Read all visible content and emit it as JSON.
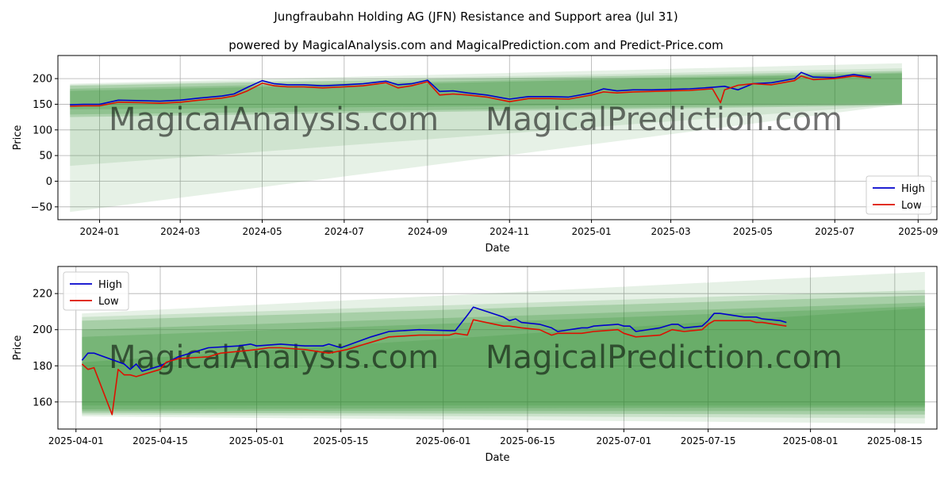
{
  "colors": {
    "high": "#0000cc",
    "low": "#dd1100",
    "band": "#2e8b2e",
    "grid": "#b0b0b0",
    "watermark": "#d0d0d0"
  },
  "header": {
    "title": "Jungfraubahn Holding AG (JFN) Resistance and Support area (Jul 31)",
    "subtitle": "powered by MagicalAnalysis.com and MagicalPrediction.com and Predict-Price.com"
  },
  "watermarks": [
    "MagicalAnalysis.com",
    "MagicalPrediction.com"
  ],
  "chart_data": [
    {
      "type": "line",
      "name": "overview",
      "xlabel": "Date",
      "ylabel": "Price",
      "grid": true,
      "legend": "lower-right",
      "xlim": [
        "2023-12-01",
        "2025-09-15"
      ],
      "ylim": [
        -75,
        245
      ],
      "xticks": [
        {
          "date": "2024-01-01",
          "label": "2024-01"
        },
        {
          "date": "2024-03-01",
          "label": "2024-03"
        },
        {
          "date": "2024-05-01",
          "label": "2024-05"
        },
        {
          "date": "2024-07-01",
          "label": "2024-07"
        },
        {
          "date": "2024-09-01",
          "label": "2024-09"
        },
        {
          "date": "2024-11-01",
          "label": "2024-11"
        },
        {
          "date": "2025-01-01",
          "label": "2025-01"
        },
        {
          "date": "2025-03-01",
          "label": "2025-03"
        },
        {
          "date": "2025-05-01",
          "label": "2025-05"
        },
        {
          "date": "2025-07-01",
          "label": "2025-07"
        },
        {
          "date": "2025-09-01",
          "label": "2025-09"
        }
      ],
      "yticks": [
        {
          "value": 200,
          "label": "200"
        },
        {
          "value": 150,
          "label": "150"
        },
        {
          "value": 100,
          "label": "100"
        },
        {
          "value": 50,
          "label": "50"
        },
        {
          "value": 0,
          "label": "0"
        },
        {
          "value": -50,
          "label": "−50"
        }
      ],
      "bands": [
        {
          "start": "2023-12-10",
          "end": "2025-08-20",
          "top": [
            190,
            230
          ],
          "bottom": [
            -60,
            150
          ],
          "opacity": 0.12
        },
        {
          "start": "2023-12-10",
          "end": "2025-08-20",
          "top": [
            188,
            220
          ],
          "bottom": [
            30,
            150
          ],
          "opacity": 0.12
        },
        {
          "start": "2023-12-10",
          "end": "2025-08-20",
          "top": [
            186,
            215
          ],
          "bottom": [
            125,
            148
          ],
          "opacity": 0.22
        },
        {
          "start": "2023-12-10",
          "end": "2025-08-20",
          "top": [
            180,
            212
          ],
          "bottom": [
            130,
            150
          ],
          "opacity": 0.22
        },
        {
          "start": "2023-12-10",
          "end": "2025-08-20",
          "top": [
            176,
            210
          ],
          "bottom": [
            140,
            152
          ],
          "opacity": 0.22
        }
      ],
      "series": [
        {
          "name": "High",
          "x": [
            "2023-12-10",
            "2023-12-20",
            "2024-01-01",
            "2024-01-15",
            "2024-02-01",
            "2024-02-15",
            "2024-03-01",
            "2024-03-15",
            "2024-04-01",
            "2024-04-10",
            "2024-04-20",
            "2024-05-01",
            "2024-05-10",
            "2024-05-20",
            "2024-06-01",
            "2024-06-15",
            "2024-07-01",
            "2024-07-15",
            "2024-08-01",
            "2024-08-10",
            "2024-08-20",
            "2024-09-01",
            "2024-09-10",
            "2024-09-20",
            "2024-10-01",
            "2024-10-15",
            "2024-11-01",
            "2024-11-15",
            "2024-12-01",
            "2024-12-15",
            "2025-01-01",
            "2025-01-10",
            "2025-01-20",
            "2025-02-01",
            "2025-02-15",
            "2025-03-01",
            "2025-03-15",
            "2025-04-01",
            "2025-04-10",
            "2025-04-20",
            "2025-05-01",
            "2025-05-15",
            "2025-06-01",
            "2025-06-06",
            "2025-06-15",
            "2025-07-01",
            "2025-07-15",
            "2025-07-28"
          ],
          "values": [
            149,
            150,
            150,
            158,
            157,
            156,
            158,
            162,
            166,
            170,
            183,
            196,
            190,
            188,
            188,
            186,
            188,
            190,
            195,
            188,
            190,
            197,
            175,
            176,
            172,
            168,
            160,
            165,
            165,
            164,
            172,
            180,
            176,
            178,
            178,
            179,
            180,
            183,
            185,
            178,
            190,
            192,
            200,
            212,
            203,
            202,
            208,
            203
          ]
        },
        {
          "name": "Low",
          "x": [
            "2023-12-10",
            "2023-12-20",
            "2024-01-01",
            "2024-01-15",
            "2024-02-01",
            "2024-02-15",
            "2024-03-01",
            "2024-03-15",
            "2024-04-01",
            "2024-04-10",
            "2024-04-20",
            "2024-05-01",
            "2024-05-10",
            "2024-05-20",
            "2024-06-01",
            "2024-06-15",
            "2024-07-01",
            "2024-07-15",
            "2024-08-01",
            "2024-08-10",
            "2024-08-20",
            "2024-09-01",
            "2024-09-10",
            "2024-09-20",
            "2024-10-01",
            "2024-10-15",
            "2024-11-01",
            "2024-11-15",
            "2024-12-01",
            "2024-12-15",
            "2025-01-01",
            "2025-01-10",
            "2025-01-20",
            "2025-02-01",
            "2025-02-15",
            "2025-03-01",
            "2025-03-15",
            "2025-04-01",
            "2025-04-07",
            "2025-04-10",
            "2025-04-20",
            "2025-05-01",
            "2025-05-15",
            "2025-06-01",
            "2025-06-06",
            "2025-06-15",
            "2025-07-01",
            "2025-07-15",
            "2025-07-28"
          ],
          "values": [
            146,
            147,
            147,
            154,
            153,
            152,
            154,
            158,
            162,
            166,
            176,
            191,
            186,
            184,
            184,
            182,
            184,
            186,
            192,
            182,
            186,
            194,
            168,
            170,
            168,
            164,
            155,
            161,
            161,
            160,
            168,
            174,
            172,
            174,
            175,
            176,
            177,
            180,
            153,
            178,
            187,
            190,
            188,
            196,
            205,
            198,
            200,
            205,
            201
          ]
        }
      ]
    },
    {
      "type": "line",
      "name": "detail",
      "xlabel": "Date",
      "ylabel": "Price",
      "grid": true,
      "legend": "top-left",
      "xlim": [
        "2025-03-29",
        "2025-08-22"
      ],
      "ylim": [
        145,
        235
      ],
      "xticks": [
        {
          "date": "2025-04-01",
          "label": "2025-04-01"
        },
        {
          "date": "2025-04-15",
          "label": "2025-04-15"
        },
        {
          "date": "2025-05-01",
          "label": "2025-05-01"
        },
        {
          "date": "2025-05-15",
          "label": "2025-05-15"
        },
        {
          "date": "2025-06-01",
          "label": "2025-06-01"
        },
        {
          "date": "2025-06-15",
          "label": "2025-06-15"
        },
        {
          "date": "2025-07-01",
          "label": "2025-07-01"
        },
        {
          "date": "2025-07-15",
          "label": "2025-07-15"
        },
        {
          "date": "2025-08-01",
          "label": "2025-08-01"
        },
        {
          "date": "2025-08-15",
          "label": "2025-08-15"
        }
      ],
      "yticks": [
        {
          "value": 220,
          "label": "220"
        },
        {
          "value": 200,
          "label": "200"
        },
        {
          "value": 180,
          "label": "180"
        },
        {
          "value": 160,
          "label": "160"
        }
      ],
      "bands": [
        {
          "start": "2025-04-02",
          "end": "2025-08-20",
          "top": [
            209,
            232
          ],
          "bottom": [
            152,
            148
          ],
          "opacity": 0.12
        },
        {
          "start": "2025-04-02",
          "end": "2025-08-20",
          "top": [
            207,
            222
          ],
          "bottom": [
            153,
            151
          ],
          "opacity": 0.15
        },
        {
          "start": "2025-04-02",
          "end": "2025-08-20",
          "top": [
            205,
            219
          ],
          "bottom": [
            154,
            153
          ],
          "opacity": 0.22
        },
        {
          "start": "2025-04-02",
          "end": "2025-08-20",
          "top": [
            200,
            215
          ],
          "bottom": [
            155,
            155
          ],
          "opacity": 0.22
        },
        {
          "start": "2025-04-02",
          "end": "2025-08-20",
          "top": [
            196,
            213
          ],
          "bottom": [
            156,
            157
          ],
          "opacity": 0.22
        },
        {
          "start": "2025-04-02",
          "end": "2025-08-20",
          "top": [
            182,
            212
          ],
          "bottom": [
            158,
            158
          ],
          "opacity": 0.18
        }
      ],
      "series": [
        {
          "name": "High",
          "x": [
            "2025-04-02",
            "2025-04-03",
            "2025-04-04",
            "2025-04-09",
            "2025-04-10",
            "2025-04-11",
            "2025-04-12",
            "2025-04-15",
            "2025-04-18",
            "2025-04-23",
            "2025-04-28",
            "2025-04-30",
            "2025-05-01",
            "2025-05-05",
            "2025-05-09",
            "2025-05-12",
            "2025-05-13",
            "2025-05-15",
            "2025-05-20",
            "2025-05-23",
            "2025-05-28",
            "2025-06-02",
            "2025-06-03",
            "2025-06-05",
            "2025-06-06",
            "2025-06-11",
            "2025-06-12",
            "2025-06-13",
            "2025-06-14",
            "2025-06-17",
            "2025-06-19",
            "2025-06-20",
            "2025-06-24",
            "2025-06-25",
            "2025-06-26",
            "2025-06-30",
            "2025-07-01",
            "2025-07-02",
            "2025-07-03",
            "2025-07-07",
            "2025-07-09",
            "2025-07-10",
            "2025-07-11",
            "2025-07-14",
            "2025-07-15",
            "2025-07-16",
            "2025-07-17",
            "2025-07-21",
            "2025-07-22",
            "2025-07-23",
            "2025-07-24",
            "2025-07-27",
            "2025-07-28"
          ],
          "values": [
            183,
            187,
            187,
            181,
            178,
            181,
            177,
            180,
            185,
            190,
            191,
            192,
            191,
            192,
            191,
            191,
            192,
            190,
            196,
            199,
            200,
            199.5,
            199.5,
            208,
            212.5,
            207,
            205,
            206,
            204,
            203,
            201,
            199,
            201,
            201,
            202,
            203,
            202,
            202,
            199,
            201,
            203,
            203,
            201,
            202,
            205,
            209,
            209,
            207,
            207,
            207,
            206,
            205,
            204
          ]
        },
        {
          "name": "Low",
          "x": [
            "2025-04-02",
            "2025-04-03",
            "2025-04-04",
            "2025-04-07",
            "2025-04-08",
            "2025-04-09",
            "2025-04-10",
            "2025-04-11",
            "2025-04-15",
            "2025-04-16",
            "2025-04-18",
            "2025-04-23",
            "2025-04-25",
            "2025-04-28",
            "2025-05-01",
            "2025-05-03",
            "2025-05-05",
            "2025-05-09",
            "2025-05-13",
            "2025-05-16",
            "2025-05-19",
            "2025-05-20",
            "2025-05-23",
            "2025-05-28",
            "2025-06-02",
            "2025-06-03",
            "2025-06-05",
            "2025-06-06",
            "2025-06-11",
            "2025-06-12",
            "2025-06-14",
            "2025-06-17",
            "2025-06-19",
            "2025-06-20",
            "2025-06-24",
            "2025-06-26",
            "2025-06-30",
            "2025-07-01",
            "2025-07-03",
            "2025-07-07",
            "2025-07-09",
            "2025-07-11",
            "2025-07-14",
            "2025-07-15",
            "2025-07-16",
            "2025-07-17",
            "2025-07-21",
            "2025-07-22",
            "2025-07-23",
            "2025-07-24",
            "2025-07-28"
          ],
          "values": [
            181,
            178,
            179,
            153,
            178,
            175,
            175,
            174,
            178,
            182,
            184,
            185,
            187,
            188,
            189,
            190,
            190,
            189,
            187,
            189,
            192,
            193,
            196,
            197,
            197,
            198,
            197,
            205.5,
            202,
            202,
            201,
            200,
            197,
            198,
            198,
            199,
            200,
            198,
            196,
            197,
            200,
            199,
            200,
            203,
            205,
            205,
            205,
            205,
            204,
            204,
            202
          ]
        }
      ]
    }
  ]
}
